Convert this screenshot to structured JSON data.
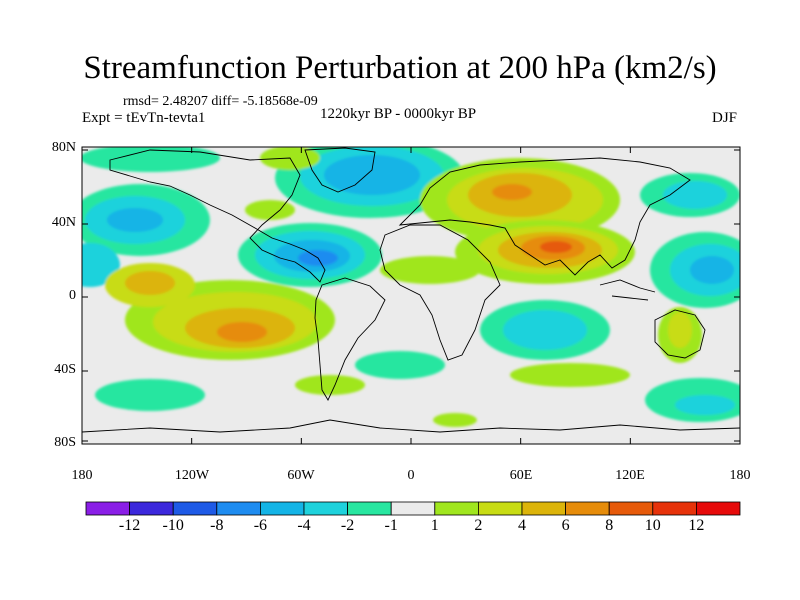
{
  "title": "Streamfunction Perturbation at 200 hPa (km2/s)",
  "stats_line": "rmsd= 2.48207 diff= -5.18568e-09",
  "experiment": "Expt = tEvTn-tevta1",
  "period": "1220kyr BP - 0000kyr BP",
  "season": "DJF",
  "y_ticks": [
    "80N",
    "40N",
    "0",
    "40S",
    "80S"
  ],
  "x_ticks": [
    "180",
    "120W",
    "60W",
    "0",
    "60E",
    "120E",
    "180"
  ],
  "colorbar": {
    "labels": [
      "-12",
      "-10",
      "-8",
      "-6",
      "-4",
      "-2",
      "-1",
      "1",
      "2",
      "4",
      "6",
      "8",
      "10",
      "12"
    ],
    "colors": [
      "#8a1ee6",
      "#3c28dc",
      "#1e5ae6",
      "#1e8cf0",
      "#14b4e6",
      "#1ed2dc",
      "#28e6a0",
      "#ebebeb",
      "#a0e61e",
      "#c8dc14",
      "#dcb40a",
      "#e68c0a",
      "#e65a0a",
      "#e6320a",
      "#e60a0a"
    ]
  },
  "colors": {
    "background": "#ebebeb",
    "neutral": "#ebebeb",
    "pos_weak": "#a0e61e",
    "pos_mid": "#c8dc14",
    "pos_strong": "#dcb40a",
    "pos_core": "#e68c0a",
    "pos_peak": "#e65a0a",
    "neg_weak": "#28e6a0",
    "neg_mid": "#1ed2dc",
    "neg_strong": "#14b4e6",
    "neg_core": "#1e8cf0"
  }
}
